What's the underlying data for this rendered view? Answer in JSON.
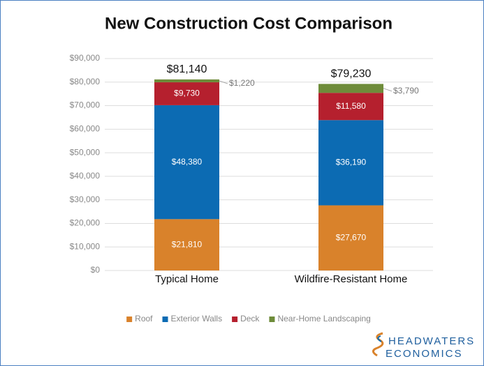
{
  "chart_data": {
    "type": "stacked_bar",
    "title": "New Construction Cost Comparison",
    "categories": [
      "Typical Home",
      "Wildfire-Resistant Home"
    ],
    "series": [
      {
        "name": "Roof",
        "color": "#d9822b",
        "values": [
          21810,
          27670
        ],
        "value_labels": [
          "$21,810",
          "$27,670"
        ]
      },
      {
        "name": "Exterior Walls",
        "color": "#0c6bb3",
        "values": [
          48380,
          36190
        ],
        "value_labels": [
          "$48,380",
          "$36,190"
        ]
      },
      {
        "name": "Deck",
        "color": "#b5202e",
        "values": [
          9730,
          11580
        ],
        "value_labels": [
          "$9,730",
          "$11,580"
        ]
      },
      {
        "name": "Near-Home Landscaping",
        "color": "#6e8c3a",
        "values": [
          1220,
          3790
        ],
        "value_labels": [
          "$1,220",
          "$3,790"
        ]
      }
    ],
    "totals": [
      81140,
      79230
    ],
    "total_labels": [
      "$81,140",
      "$79,230"
    ],
    "ylim": [
      0,
      90000
    ],
    "yticks": [
      {
        "value": 0,
        "label": "$0"
      },
      {
        "value": 10000,
        "label": "$10,000"
      },
      {
        "value": 20000,
        "label": "$20,000"
      },
      {
        "value": 30000,
        "label": "$30,000"
      },
      {
        "value": 40000,
        "label": "$40,000"
      },
      {
        "value": 50000,
        "label": "$50,000"
      },
      {
        "value": 60000,
        "label": "$60,000"
      },
      {
        "value": 70000,
        "label": "$70,000"
      },
      {
        "value": 80000,
        "label": "$80,000"
      },
      {
        "value": 90000,
        "label": "$90,000"
      }
    ],
    "grid": true,
    "legend": "bottom"
  },
  "logo": {
    "line1": "HEADWATERS",
    "line2": "ECONOMICS"
  }
}
